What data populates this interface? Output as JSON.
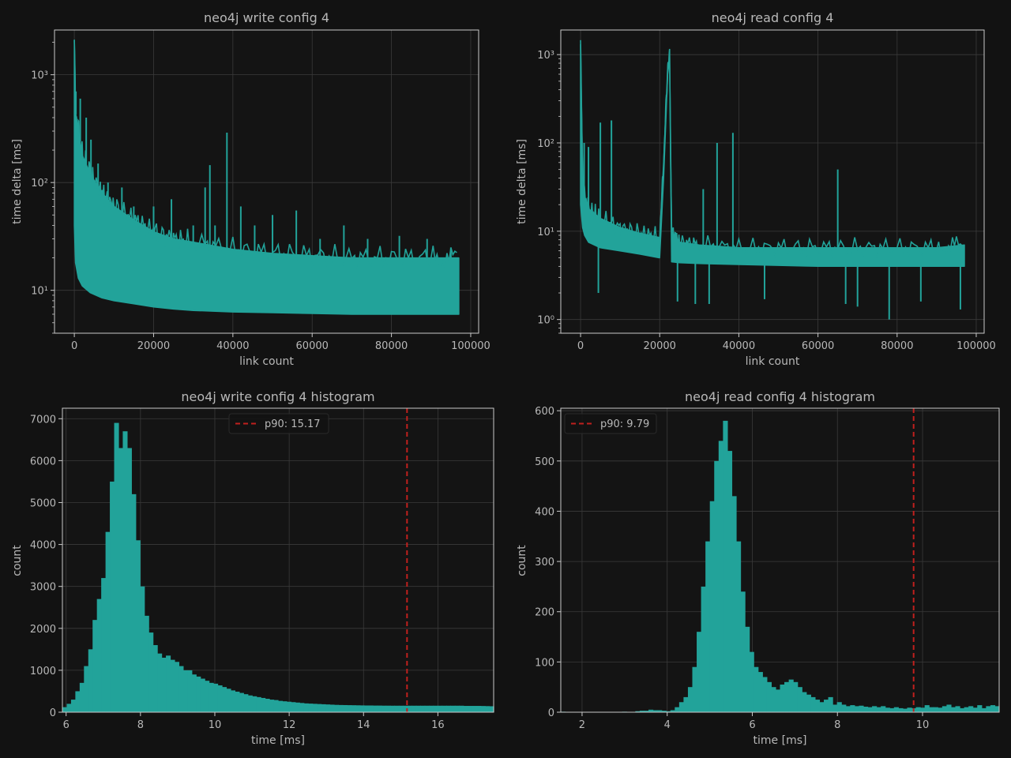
{
  "theme": {
    "background": "#121212",
    "axes_face": "#141414",
    "spine": "#c9c9c9",
    "grid": "#3a3a3a",
    "text": "#b8b8b8",
    "series": "#22a39a",
    "p90_line": "#c0201e",
    "legend_face": "#121212",
    "legend_edge": "#2a2a2a"
  },
  "chart_data": [
    {
      "id": "write-series",
      "type": "line",
      "title": "neo4j write config 4",
      "xlabel": "link count",
      "ylabel": "time delta [ms]",
      "yscale": "log",
      "xlim": [
        -5000,
        102000
      ],
      "ylim": [
        4,
        2600
      ],
      "xticks": [
        0,
        20000,
        40000,
        60000,
        80000,
        100000
      ],
      "xticklabels": [
        "0",
        "20000",
        "40000",
        "60000",
        "80000",
        "100000"
      ],
      "yticks": [
        10,
        100,
        1000
      ],
      "yticklabels": [
        "10¹",
        "10²",
        "10³"
      ],
      "grid": true,
      "envelope": {
        "x": [
          0,
          300,
          1000,
          2000,
          4000,
          7000,
          10000,
          15000,
          20000,
          25000,
          30000,
          40000,
          50000,
          60000,
          70000,
          80000,
          90000,
          97000
        ],
        "lower": [
          40,
          18,
          13,
          11,
          9.5,
          8.5,
          8,
          7.5,
          7,
          6.7,
          6.5,
          6.3,
          6.2,
          6.1,
          6.0,
          6.0,
          6.0,
          6.0
        ],
        "upper": [
          2100,
          450,
          300,
          180,
          120,
          80,
          60,
          45,
          35,
          30,
          28,
          24,
          22,
          21,
          20,
          20,
          20,
          20
        ]
      },
      "spikes": [
        {
          "x": 0,
          "y": 2100
        },
        {
          "x": 400,
          "y": 700
        },
        {
          "x": 1500,
          "y": 600
        },
        {
          "x": 3000,
          "y": 400
        },
        {
          "x": 4200,
          "y": 250
        },
        {
          "x": 6000,
          "y": 150
        },
        {
          "x": 8500,
          "y": 100
        },
        {
          "x": 12000,
          "y": 90
        },
        {
          "x": 15000,
          "y": 60
        },
        {
          "x": 20000,
          "y": 60
        },
        {
          "x": 24500,
          "y": 70
        },
        {
          "x": 30000,
          "y": 40
        },
        {
          "x": 33000,
          "y": 90
        },
        {
          "x": 34200,
          "y": 145
        },
        {
          "x": 35500,
          "y": 40
        },
        {
          "x": 38500,
          "y": 290
        },
        {
          "x": 42000,
          "y": 60
        },
        {
          "x": 45500,
          "y": 40
        },
        {
          "x": 50000,
          "y": 50
        },
        {
          "x": 56000,
          "y": 55
        },
        {
          "x": 62000,
          "y": 30
        },
        {
          "x": 68000,
          "y": 40
        },
        {
          "x": 74000,
          "y": 30
        },
        {
          "x": 82000,
          "y": 32
        },
        {
          "x": 89000,
          "y": 30
        },
        {
          "x": 95000,
          "y": 25
        }
      ]
    },
    {
      "id": "read-series",
      "type": "line",
      "title": "neo4j read config 4",
      "xlabel": "link count",
      "ylabel": "time delta [ms]",
      "yscale": "log",
      "xlim": [
        -5000,
        102000
      ],
      "ylim": [
        0.7,
        1900
      ],
      "xticks": [
        0,
        20000,
        40000,
        60000,
        80000,
        100000
      ],
      "xticklabels": [
        "0",
        "20000",
        "40000",
        "60000",
        "80000",
        "100000"
      ],
      "yticks": [
        1,
        10,
        100,
        1000
      ],
      "yticklabels": [
        "10⁰",
        "10¹",
        "10²",
        "10³"
      ],
      "grid": true,
      "envelope": {
        "x": [
          0,
          500,
          1000,
          2000,
          5000,
          10000,
          15000,
          19900,
          20000,
          21000,
          22000,
          22500,
          23000,
          25000,
          30000,
          40000,
          50000,
          60000,
          70000,
          80000,
          90000,
          97000
        ],
        "lower": [
          20,
          11,
          9,
          7.5,
          6.5,
          6,
          5.5,
          5,
          5,
          40,
          600,
          900,
          4.5,
          4.4,
          4.3,
          4.2,
          4.1,
          4.0,
          4.0,
          4.0,
          4.0,
          4.0
        ],
        "upper": [
          1300,
          45,
          25,
          18,
          14,
          11,
          9.5,
          8.5,
          8.5,
          60,
          700,
          950,
          10,
          7.5,
          7,
          6.5,
          6.5,
          6.5,
          6.5,
          6.5,
          6.5,
          7
        ]
      },
      "spikes": [
        {
          "x": 0,
          "y": 1300
        },
        {
          "x": 900,
          "y": 100
        },
        {
          "x": 2000,
          "y": 90
        },
        {
          "x": 4500,
          "y": 2.0
        },
        {
          "x": 5000,
          "y": 170
        },
        {
          "x": 7800,
          "y": 180
        },
        {
          "x": 24500,
          "y": 1.6
        },
        {
          "x": 29000,
          "y": 1.5
        },
        {
          "x": 31000,
          "y": 30
        },
        {
          "x": 32500,
          "y": 1.5
        },
        {
          "x": 34500,
          "y": 100
        },
        {
          "x": 38500,
          "y": 130
        },
        {
          "x": 46500,
          "y": 1.7
        },
        {
          "x": 65000,
          "y": 50
        },
        {
          "x": 67000,
          "y": 1.5
        },
        {
          "x": 70000,
          "y": 1.4
        },
        {
          "x": 78000,
          "y": 1.0
        },
        {
          "x": 86000,
          "y": 1.6
        },
        {
          "x": 96000,
          "y": 1.3
        }
      ]
    },
    {
      "id": "write-hist",
      "type": "bar",
      "title": "neo4j write config 4 histogram",
      "xlabel": "time [ms]",
      "ylabel": "count",
      "xlim": [
        5.9,
        17.5
      ],
      "ylim": [
        0,
        7250
      ],
      "xticks": [
        6,
        8,
        10,
        12,
        14,
        16
      ],
      "xticklabels": [
        "6",
        "8",
        "10",
        "12",
        "14",
        "16"
      ],
      "yticks": [
        0,
        1000,
        2000,
        3000,
        4000,
        5000,
        6000,
        7000
      ],
      "yticklabels": [
        "0",
        "1000",
        "2000",
        "3000",
        "4000",
        "5000",
        "6000",
        "7000"
      ],
      "grid": true,
      "bin_start": 5.9,
      "bin_width": 0.116,
      "values": [
        120,
        200,
        300,
        500,
        700,
        1100,
        1500,
        2200,
        2700,
        3200,
        4300,
        5500,
        6900,
        6300,
        6700,
        6300,
        5200,
        4100,
        3000,
        2300,
        1900,
        1600,
        1400,
        1300,
        1350,
        1250,
        1200,
        1100,
        1000,
        1000,
        900,
        850,
        800,
        750,
        700,
        680,
        640,
        600,
        560,
        520,
        490,
        460,
        430,
        400,
        380,
        360,
        340,
        320,
        300,
        290,
        270,
        260,
        250,
        240,
        230,
        220,
        210,
        205,
        200,
        195,
        190,
        185,
        180,
        175,
        172,
        170,
        168,
        166,
        164,
        162,
        160,
        160,
        158,
        158,
        156,
        156,
        155,
        155,
        155,
        155,
        155,
        155,
        155,
        155,
        155,
        155,
        155,
        155,
        155,
        155,
        155,
        155,
        155,
        150,
        150,
        150,
        150,
        148,
        145,
        142
      ],
      "p90": 15.17,
      "legend_label": "p90: 15.17",
      "legend_loc": "upper center"
    },
    {
      "id": "read-hist",
      "type": "bar",
      "title": "neo4j read config 4 histogram",
      "xlabel": "time [ms]",
      "ylabel": "count",
      "xlim": [
        1.5,
        11.8
      ],
      "ylim": [
        0,
        605
      ],
      "xticks": [
        2,
        4,
        6,
        8,
        10
      ],
      "xticklabels": [
        "2",
        "4",
        "6",
        "8",
        "10"
      ],
      "yticks": [
        0,
        100,
        200,
        300,
        400,
        500,
        600
      ],
      "yticklabels": [
        "0",
        "100",
        "200",
        "300",
        "400",
        "500",
        "600"
      ],
      "grid": true,
      "bin_start": 1.5,
      "bin_width": 0.103,
      "values": [
        1,
        0,
        0,
        0,
        0,
        0,
        0,
        0,
        0,
        0,
        0,
        0,
        0,
        0,
        1,
        0,
        0,
        2,
        3,
        3,
        5,
        4,
        4,
        3,
        2,
        4,
        10,
        20,
        30,
        50,
        90,
        160,
        250,
        340,
        420,
        500,
        540,
        580,
        520,
        430,
        340,
        240,
        170,
        120,
        90,
        80,
        70,
        60,
        50,
        45,
        55,
        60,
        65,
        60,
        50,
        40,
        35,
        30,
        25,
        20,
        25,
        30,
        15,
        20,
        15,
        12,
        14,
        12,
        13,
        11,
        10,
        12,
        10,
        12,
        9,
        8,
        10,
        8,
        7,
        9,
        8,
        10,
        9,
        14,
        10,
        10,
        9,
        12,
        15,
        10,
        12,
        8,
        10,
        12,
        9,
        14,
        8,
        12,
        14,
        12
      ],
      "p90": 9.79,
      "legend_label": "p90: 9.79",
      "legend_loc": "upper left"
    }
  ]
}
